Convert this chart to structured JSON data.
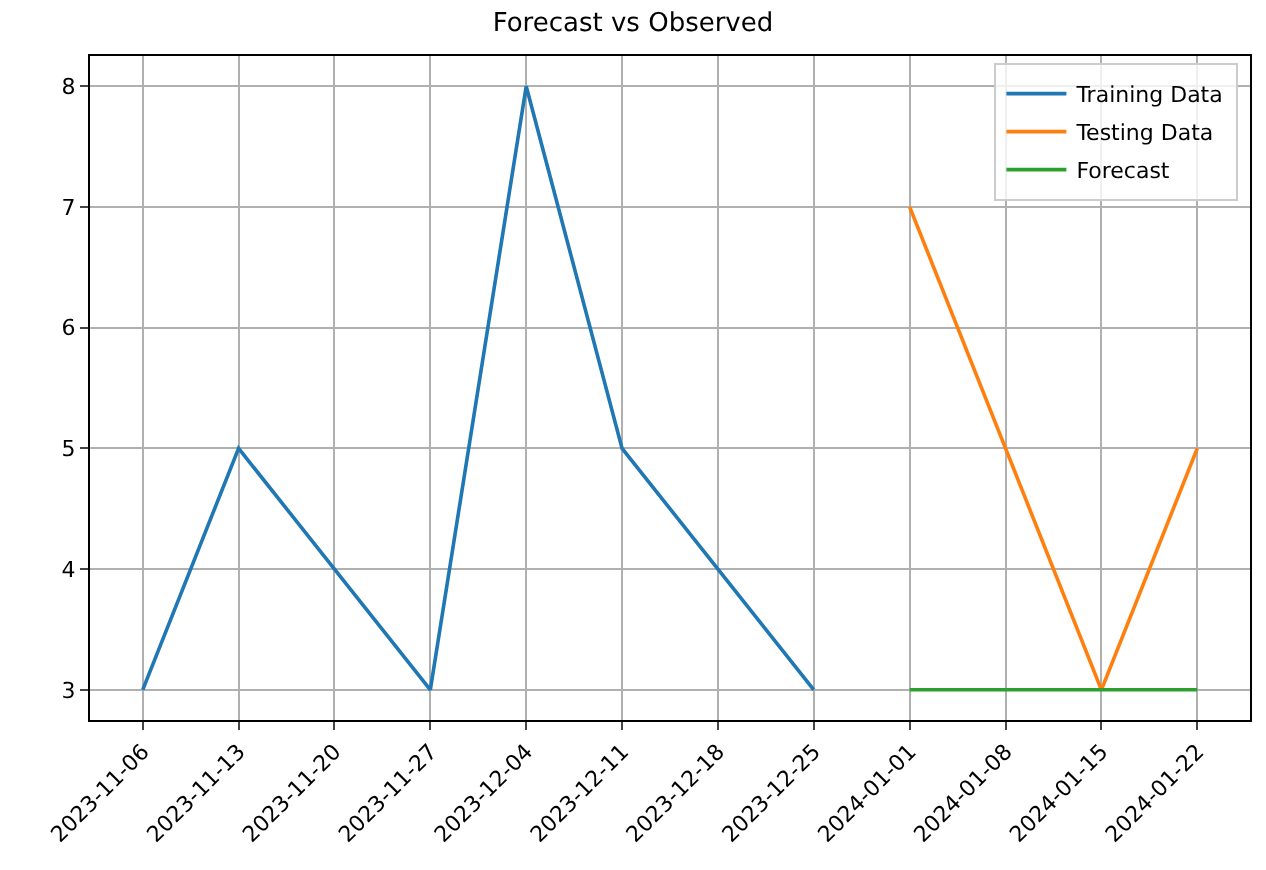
{
  "chart_data": {
    "type": "line",
    "title": "Forecast vs Observed",
    "series": [
      {
        "name": "Training Data",
        "color": "#1f77b4",
        "x": [
          "2023-11-06",
          "2023-11-13",
          "2023-11-20",
          "2023-11-27",
          "2023-12-04",
          "2023-12-11",
          "2023-12-18",
          "2023-12-25"
        ],
        "values": [
          3,
          5,
          4,
          3,
          8,
          5,
          4,
          3
        ]
      },
      {
        "name": "Testing Data",
        "color": "#ff7f0e",
        "x": [
          "2024-01-01",
          "2024-01-08",
          "2024-01-15",
          "2024-01-22"
        ],
        "values": [
          7,
          5,
          3,
          5
        ]
      },
      {
        "name": "Forecast",
        "color": "#2ca02c",
        "x": [
          "2024-01-01",
          "2024-01-08",
          "2024-01-15",
          "2024-01-22"
        ],
        "values": [
          3,
          3,
          3,
          3
        ]
      }
    ],
    "xlim": [
      "2023-11-02T03:36",
      "2024-01-25T20:24"
    ],
    "xticks": [
      "2023-11-06",
      "2023-11-13",
      "2023-11-20",
      "2023-11-27",
      "2023-12-04",
      "2023-12-11",
      "2023-12-18",
      "2023-12-25",
      "2024-01-01",
      "2024-01-08",
      "2024-01-15",
      "2024-01-22"
    ],
    "ylim": [
      2.75,
      8.25
    ],
    "yticks": [
      3,
      4,
      5,
      6,
      7,
      8
    ],
    "grid": true,
    "legend": "top right",
    "marker": "none",
    "line_style": "solid"
  }
}
